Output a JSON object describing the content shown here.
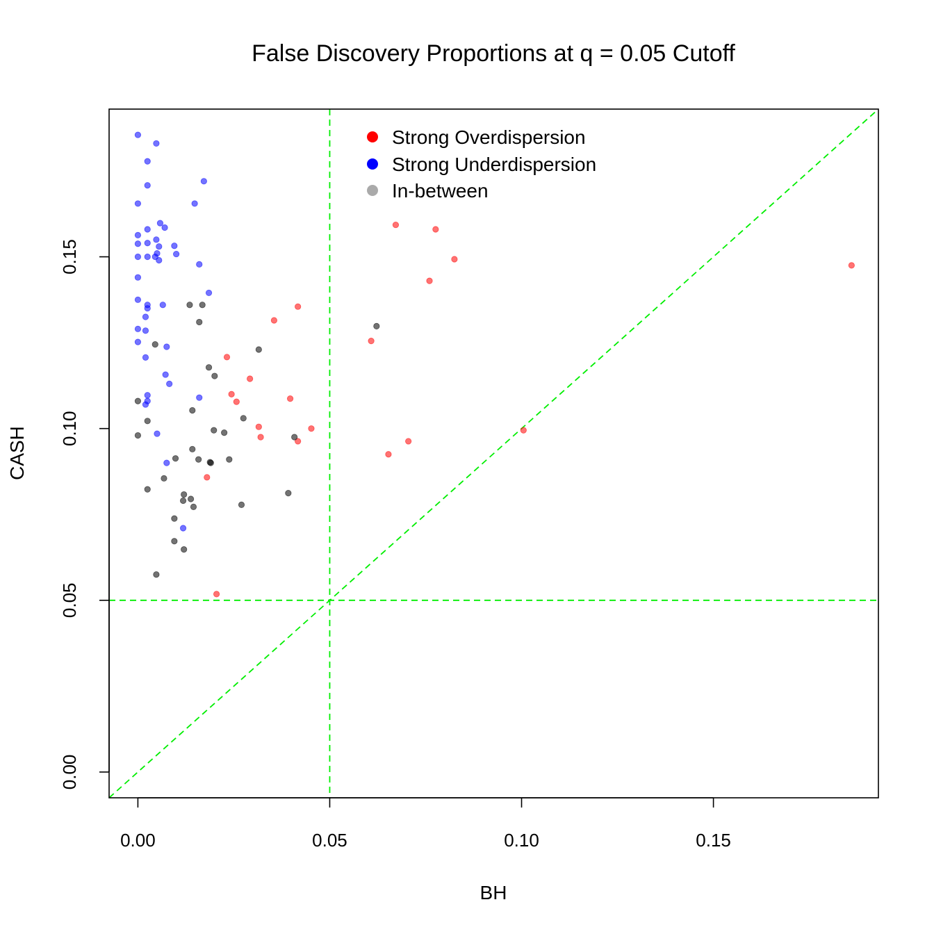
{
  "chart_data": {
    "type": "scatter",
    "title": "False Discovery Proportions at q = 0.05 Cutoff",
    "xlabel": "BH",
    "ylabel": "CASH",
    "xlim": [
      -0.0075,
      0.193
    ],
    "ylim": [
      -0.0075,
      0.193
    ],
    "xticks": [
      "0.00",
      "0.05",
      "0.10",
      "0.15"
    ],
    "yticks": [
      "0.00",
      "0.05",
      "0.10",
      "0.15"
    ],
    "xtick_values": [
      0,
      0.05,
      0.1,
      0.15
    ],
    "ytick_values": [
      0,
      0.05,
      0.1,
      0.15
    ],
    "grid": false,
    "legend_position": "top",
    "reference_lines": {
      "vertical_x": 0.05,
      "horizontal_y": 0.05,
      "diagonal": "y = x",
      "color": "#00ee00",
      "style": "dashed"
    },
    "colors": {
      "Strong Overdispersion": "#ff0000",
      "Strong Underdispersion": "#0000ff",
      "In-between": "#000000",
      "legend_in_between_swatch": "#aaaaaa"
    },
    "series": [
      {
        "name": "Strong Overdispersion",
        "points": [
          [
            0.0672,
            0.1593
          ],
          [
            0.0776,
            0.158
          ],
          [
            0.0825,
            0.1493
          ],
          [
            0.186,
            0.1475
          ],
          [
            0.076,
            0.143
          ],
          [
            0.0417,
            0.1355
          ],
          [
            0.0355,
            0.1315
          ],
          [
            0.0608,
            0.1255
          ],
          [
            0.0232,
            0.1208
          ],
          [
            0.0292,
            0.1145
          ],
          [
            0.0244,
            0.11
          ],
          [
            0.0257,
            0.1078
          ],
          [
            0.0397,
            0.1087
          ],
          [
            0.0315,
            0.1005
          ],
          [
            0.0452,
            0.1
          ],
          [
            0.032,
            0.0975
          ],
          [
            0.0417,
            0.0963
          ],
          [
            0.1005,
            0.0995
          ],
          [
            0.0705,
            0.0963
          ],
          [
            0.0653,
            0.0925
          ],
          [
            0.018,
            0.0858
          ],
          [
            0.0205,
            0.0518
          ]
        ]
      },
      {
        "name": "Strong Underdispersion",
        "points": [
          [
            0.0,
            0.1855
          ],
          [
            0.0048,
            0.183
          ],
          [
            0.0025,
            0.1778
          ],
          [
            0.0025,
            0.1708
          ],
          [
            0.0172,
            0.172
          ],
          [
            0.0,
            0.1655
          ],
          [
            0.0148,
            0.1655
          ],
          [
            0.0058,
            0.1598
          ],
          [
            0.007,
            0.1585
          ],
          [
            0.0025,
            0.158
          ],
          [
            0.0,
            0.1563
          ],
          [
            0.0048,
            0.155
          ],
          [
            0.0,
            0.1538
          ],
          [
            0.0025,
            0.154
          ],
          [
            0.0055,
            0.153
          ],
          [
            0.0095,
            0.1532
          ],
          [
            0.005,
            0.151
          ],
          [
            0.01,
            0.1508
          ],
          [
            0.0,
            0.15
          ],
          [
            0.0025,
            0.15
          ],
          [
            0.0045,
            0.15
          ],
          [
            0.0055,
            0.149
          ],
          [
            0.016,
            0.1478
          ],
          [
            0.0,
            0.144
          ],
          [
            0.0185,
            0.1395
          ],
          [
            0.0,
            0.1375
          ],
          [
            0.0065,
            0.136
          ],
          [
            0.0025,
            0.136
          ],
          [
            0.0025,
            0.135
          ],
          [
            0.002,
            0.1325
          ],
          [
            0.0,
            0.129
          ],
          [
            0.002,
            0.1285
          ],
          [
            0.0,
            0.1252
          ],
          [
            0.0075,
            0.1238
          ],
          [
            0.002,
            0.1207
          ],
          [
            0.0072,
            0.1157
          ],
          [
            0.0082,
            0.113
          ],
          [
            0.016,
            0.109
          ],
          [
            0.0025,
            0.1097
          ],
          [
            0.0025,
            0.108
          ],
          [
            0.002,
            0.107
          ],
          [
            0.005,
            0.0985
          ],
          [
            0.0075,
            0.09
          ],
          [
            0.0118,
            0.071
          ]
        ]
      },
      {
        "name": "In-between",
        "points": [
          [
            0.0135,
            0.136
          ],
          [
            0.0168,
            0.136
          ],
          [
            0.016,
            0.131
          ],
          [
            0.0622,
            0.1298
          ],
          [
            0.0045,
            0.1245
          ],
          [
            0.0315,
            0.123
          ],
          [
            0.0185,
            0.1178
          ],
          [
            0.02,
            0.1153
          ],
          [
            0.0,
            0.108
          ],
          [
            0.0142,
            0.1053
          ],
          [
            0.0275,
            0.103
          ],
          [
            0.0025,
            0.1022
          ],
          [
            0.0198,
            0.0995
          ],
          [
            0.0225,
            0.0988
          ],
          [
            0.0,
            0.098
          ],
          [
            0.0408,
            0.0975
          ],
          [
            0.0142,
            0.094
          ],
          [
            0.0098,
            0.0913
          ],
          [
            0.0158,
            0.091
          ],
          [
            0.0238,
            0.091
          ],
          [
            0.0188,
            0.0902
          ],
          [
            0.019,
            0.09
          ],
          [
            0.0068,
            0.0855
          ],
          [
            0.0025,
            0.0823
          ],
          [
            0.0392,
            0.0812
          ],
          [
            0.012,
            0.0808
          ],
          [
            0.0118,
            0.079
          ],
          [
            0.0138,
            0.0795
          ],
          [
            0.027,
            0.0778
          ],
          [
            0.0145,
            0.0772
          ],
          [
            0.0095,
            0.0738
          ],
          [
            0.0095,
            0.0672
          ],
          [
            0.012,
            0.0648
          ],
          [
            0.0048,
            0.0575
          ]
        ]
      }
    ]
  }
}
